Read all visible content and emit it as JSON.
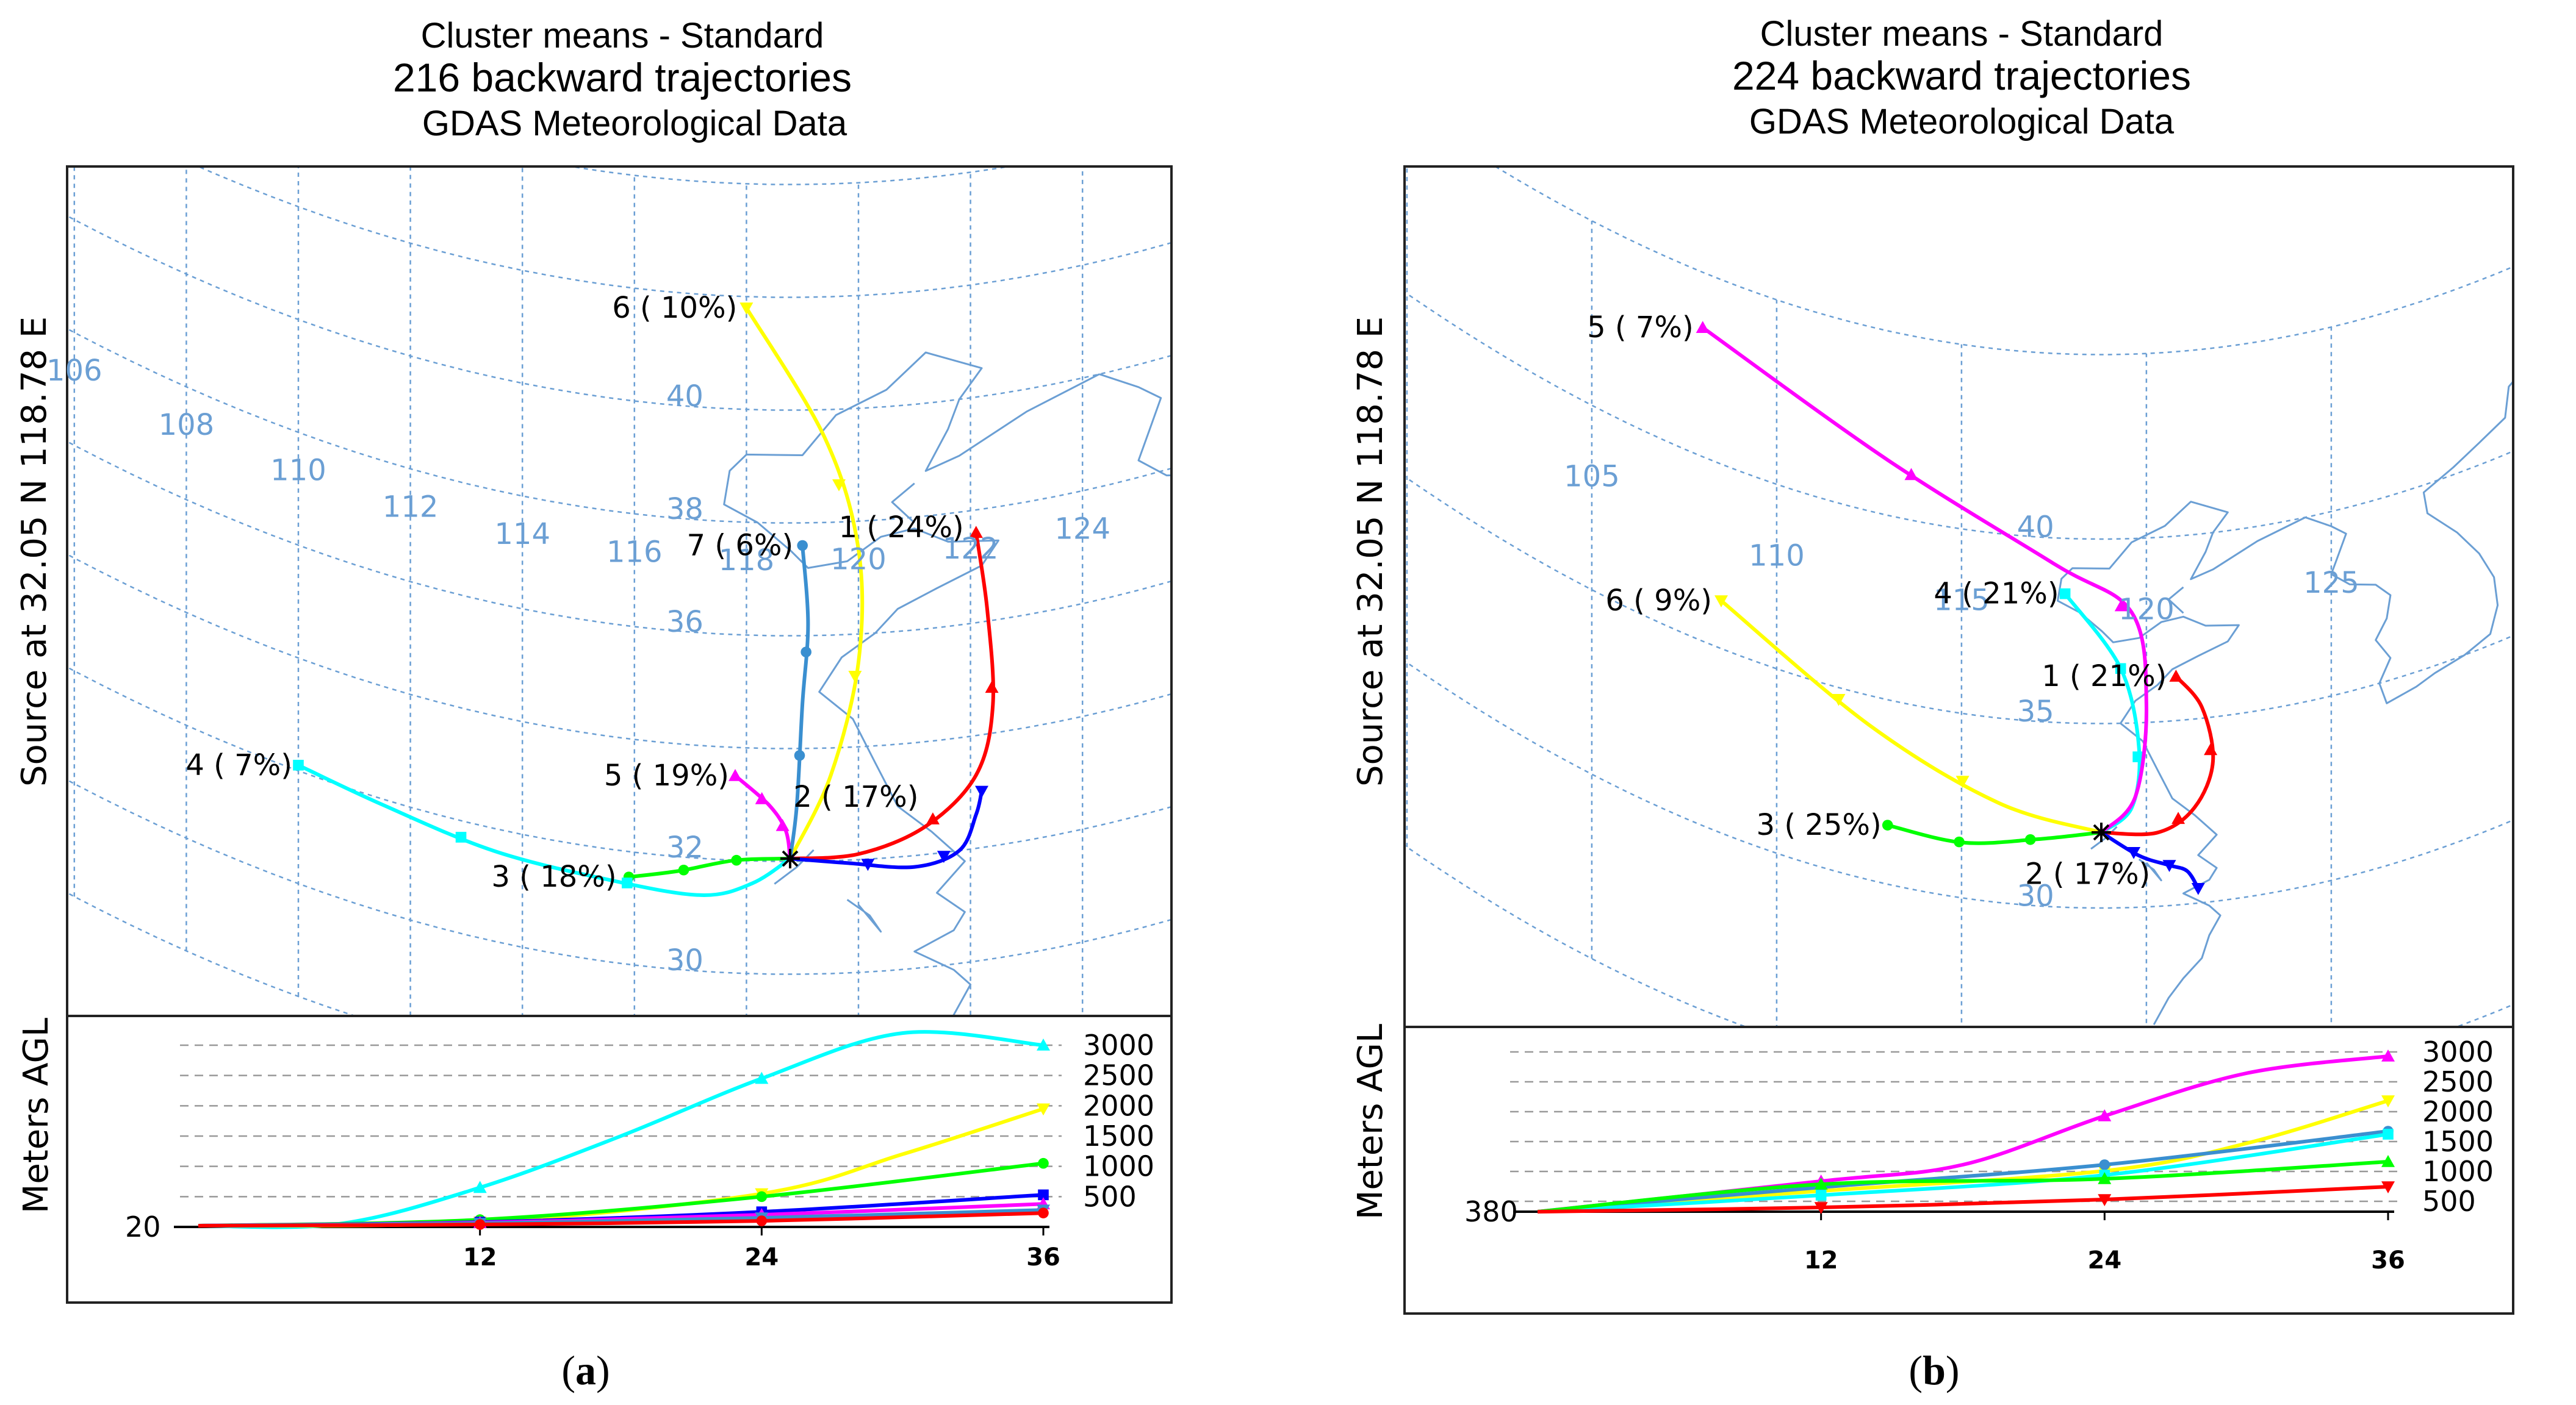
{
  "colors": {
    "red": "#ff0000",
    "blue": "#0000ff",
    "green": "#00ff00",
    "cyan": "#00ffff",
    "magenta": "#ff00ff",
    "yellow": "#ffff00",
    "steelblue": "#3a8fd0",
    "grid": "#6b9fd4",
    "coast": "#6b9fd4",
    "dashed": "#999999"
  },
  "chart_data": [
    {
      "type": "line",
      "panel_label": "(a)",
      "title": "Cluster means - Standard",
      "subtitle": "216 backward trajectories",
      "subtitle2": "GDAS Meteorological Data",
      "ylabel": "Source   at   32.05 N  118.78 E",
      "lon_labels": [
        "106",
        "108",
        "110",
        "112",
        "114",
        "116",
        "118",
        "120",
        "122",
        "124"
      ],
      "lat_labels": [
        "40",
        "38",
        "36",
        "32",
        "30"
      ],
      "source": {
        "lon": 118.78,
        "lat": 32.05
      },
      "clusters": [
        {
          "label": "1 ( 24%)",
          "color": "red",
          "path": [
            [
              118.78,
              32.05
            ],
            [
              120.0,
              32.1
            ],
            [
              121.2,
              32.5
            ],
            [
              122.1,
              33.3
            ],
            [
              122.4,
              34.5
            ],
            [
              122.3,
              36.2
            ],
            [
              122.1,
              37.6
            ]
          ]
        },
        {
          "label": "2 ( 17%)",
          "color": "blue",
          "path": [
            [
              118.78,
              32.05
            ],
            [
              119.8,
              31.95
            ],
            [
              121.0,
              31.8
            ],
            [
              121.8,
              32.0
            ],
            [
              122.1,
              32.6
            ],
            [
              122.2,
              33.0
            ]
          ]
        },
        {
          "label": "3 ( 18%)",
          "color": "green",
          "path": [
            [
              118.78,
              32.05
            ],
            [
              117.8,
              32.0
            ],
            [
              116.8,
              31.75
            ],
            [
              115.9,
              31.55
            ]
          ]
        },
        {
          "label": "4 (  7%)",
          "color": "cyan",
          "path": [
            [
              118.78,
              32.05
            ],
            [
              118.1,
              31.6
            ],
            [
              117.2,
              31.35
            ],
            [
              115.6,
              31.45
            ],
            [
              113.5,
              31.6
            ],
            [
              111.5,
              31.9
            ],
            [
              110.0,
              32.1
            ]
          ]
        },
        {
          "label": "5 ( 19%)",
          "color": "magenta",
          "path": [
            [
              118.78,
              32.05
            ],
            [
              118.7,
              32.55
            ],
            [
              118.4,
              33.0
            ],
            [
              117.8,
              33.5
            ]
          ]
        },
        {
          "label": "6 ( 10%)",
          "color": "yellow",
          "path": [
            [
              118.78,
              32.05
            ],
            [
              119.5,
              33.5
            ],
            [
              120.0,
              35.5
            ],
            [
              120.0,
              37.5
            ],
            [
              119.4,
              39.5
            ],
            [
              118.0,
              41.8
            ]
          ]
        },
        {
          "label": "7 (  6%)",
          "color": "steelblue",
          "path": [
            [
              118.78,
              32.05
            ],
            [
              118.9,
              33.0
            ],
            [
              119.0,
              34.8
            ],
            [
              119.1,
              36.2
            ],
            [
              119.0,
              37.6
            ]
          ]
        }
      ],
      "height": {
        "ylabel": "Meters AGL",
        "start_label": "20",
        "x_ticks": [
          "12",
          "24",
          "36"
        ],
        "y_labels": [
          "3000",
          "2500",
          "2000",
          "1500",
          "1000",
          "500"
        ],
        "series": [
          {
            "color": "cyan",
            "values": [
              [
                0,
                20
              ],
              [
                6,
                50
              ],
              [
                12,
                650
              ],
              [
                18,
                1500
              ],
              [
                24,
                2450
              ],
              [
                30,
                3200
              ],
              [
                36,
                3000
              ]
            ]
          },
          {
            "color": "yellow",
            "values": [
              [
                0,
                20
              ],
              [
                12,
                80
              ],
              [
                24,
                550
              ],
              [
                30,
                1200
              ],
              [
                36,
                1950
              ]
            ]
          },
          {
            "color": "green",
            "values": [
              [
                0,
                20
              ],
              [
                12,
                120
              ],
              [
                24,
                500
              ],
              [
                36,
                1050
              ]
            ]
          },
          {
            "color": "blue",
            "values": [
              [
                0,
                20
              ],
              [
                12,
                80
              ],
              [
                24,
                250
              ],
              [
                36,
                530
              ]
            ]
          },
          {
            "color": "magenta",
            "values": [
              [
                0,
                20
              ],
              [
                12,
                70
              ],
              [
                24,
                200
              ],
              [
                36,
                380
              ]
            ]
          },
          {
            "color": "steelblue",
            "values": [
              [
                0,
                20
              ],
              [
                12,
                60
              ],
              [
                24,
                150
              ],
              [
                36,
                280
              ]
            ]
          },
          {
            "color": "red",
            "values": [
              [
                0,
                20
              ],
              [
                12,
                40
              ],
              [
                24,
                100
              ],
              [
                36,
                230
              ]
            ]
          }
        ]
      }
    },
    {
      "type": "line",
      "panel_label": "(b)",
      "title": "Cluster means - Standard",
      "subtitle": "224 backward trajectories",
      "subtitle2": "GDAS Meteorological Data",
      "ylabel": "Source   at   32.05 N  118.78 E",
      "lon_labels": [
        "105",
        "110",
        "115",
        "120",
        "125"
      ],
      "lat_labels": [
        "40",
        "35",
        "30"
      ],
      "source": {
        "lon": 118.78,
        "lat": 32.05
      },
      "clusters": [
        {
          "label": "1 ( 21%)",
          "color": "red",
          "path": [
            [
              118.78,
              32.05
            ],
            [
              120.3,
              32.0
            ],
            [
              121.3,
              32.6
            ],
            [
              121.8,
              33.8
            ],
            [
              121.5,
              35.3
            ],
            [
              120.8,
              36.2
            ]
          ]
        },
        {
          "label": "2 ( 17%)",
          "color": "blue",
          "path": [
            [
              118.78,
              32.05
            ],
            [
              119.8,
              31.4
            ],
            [
              120.6,
              31.1
            ],
            [
              121.1,
              30.9
            ],
            [
              121.4,
              30.4
            ]
          ]
        },
        {
          "label": "3 ( 25%)",
          "color": "green",
          "path": [
            [
              118.78,
              32.05
            ],
            [
              117.0,
              31.8
            ],
            [
              115.0,
              31.5
            ],
            [
              113.0,
              31.6
            ]
          ]
        },
        {
          "label": "4 ( 21%)",
          "color": "cyan",
          "path": [
            [
              118.78,
              32.05
            ],
            [
              119.6,
              32.7
            ],
            [
              119.8,
              34.3
            ],
            [
              119.3,
              36.5
            ],
            [
              117.8,
              38.5
            ]
          ]
        },
        {
          "label": "5 (  7%)",
          "color": "magenta",
          "path": [
            [
              118.78,
              32.05
            ],
            [
              119.7,
              33.0
            ],
            [
              120.0,
              35.5
            ],
            [
              119.6,
              38.0
            ],
            [
              117.5,
              39.3
            ],
            [
              113.0,
              41.5
            ],
            [
              108.0,
              43.5
            ]
          ]
        },
        {
          "label": "6 (  9%)",
          "color": "yellow",
          "path": [
            [
              118.78,
              32.05
            ],
            [
              116.0,
              32.7
            ],
            [
              112.5,
              34.2
            ],
            [
              108.5,
              36.3
            ]
          ]
        }
      ],
      "height": {
        "ylabel": "Meters AGL",
        "start_label": "380",
        "x_ticks": [
          "12",
          "24",
          "36"
        ],
        "y_labels": [
          "3000",
          "2500",
          "2000",
          "1500",
          "1000",
          "500"
        ],
        "series": [
          {
            "color": "magenta",
            "values": [
              [
                0,
                380
              ],
              [
                12,
                880
              ],
              [
                18,
                1150
              ],
              [
                24,
                1950
              ],
              [
                30,
                2650
              ],
              [
                36,
                2930
              ]
            ]
          },
          {
            "color": "yellow",
            "values": [
              [
                0,
                380
              ],
              [
                12,
                720
              ],
              [
                24,
                1050
              ],
              [
                30,
                1500
              ],
              [
                36,
                2200
              ]
            ]
          },
          {
            "color": "steelblue",
            "values": [
              [
                0,
                380
              ],
              [
                12,
                780
              ],
              [
                24,
                1150
              ],
              [
                36,
                1700
              ]
            ]
          },
          {
            "color": "cyan",
            "values": [
              [
                0,
                380
              ],
              [
                12,
                650
              ],
              [
                24,
                980
              ],
              [
                36,
                1650
              ]
            ]
          },
          {
            "color": "green",
            "values": [
              [
                0,
                380
              ],
              [
                12,
                830
              ],
              [
                24,
                920
              ],
              [
                36,
                1200
              ]
            ]
          },
          {
            "color": "red",
            "values": [
              [
                0,
                380
              ],
              [
                12,
                450
              ],
              [
                24,
                580
              ],
              [
                36,
                790
              ]
            ]
          }
        ]
      }
    }
  ]
}
